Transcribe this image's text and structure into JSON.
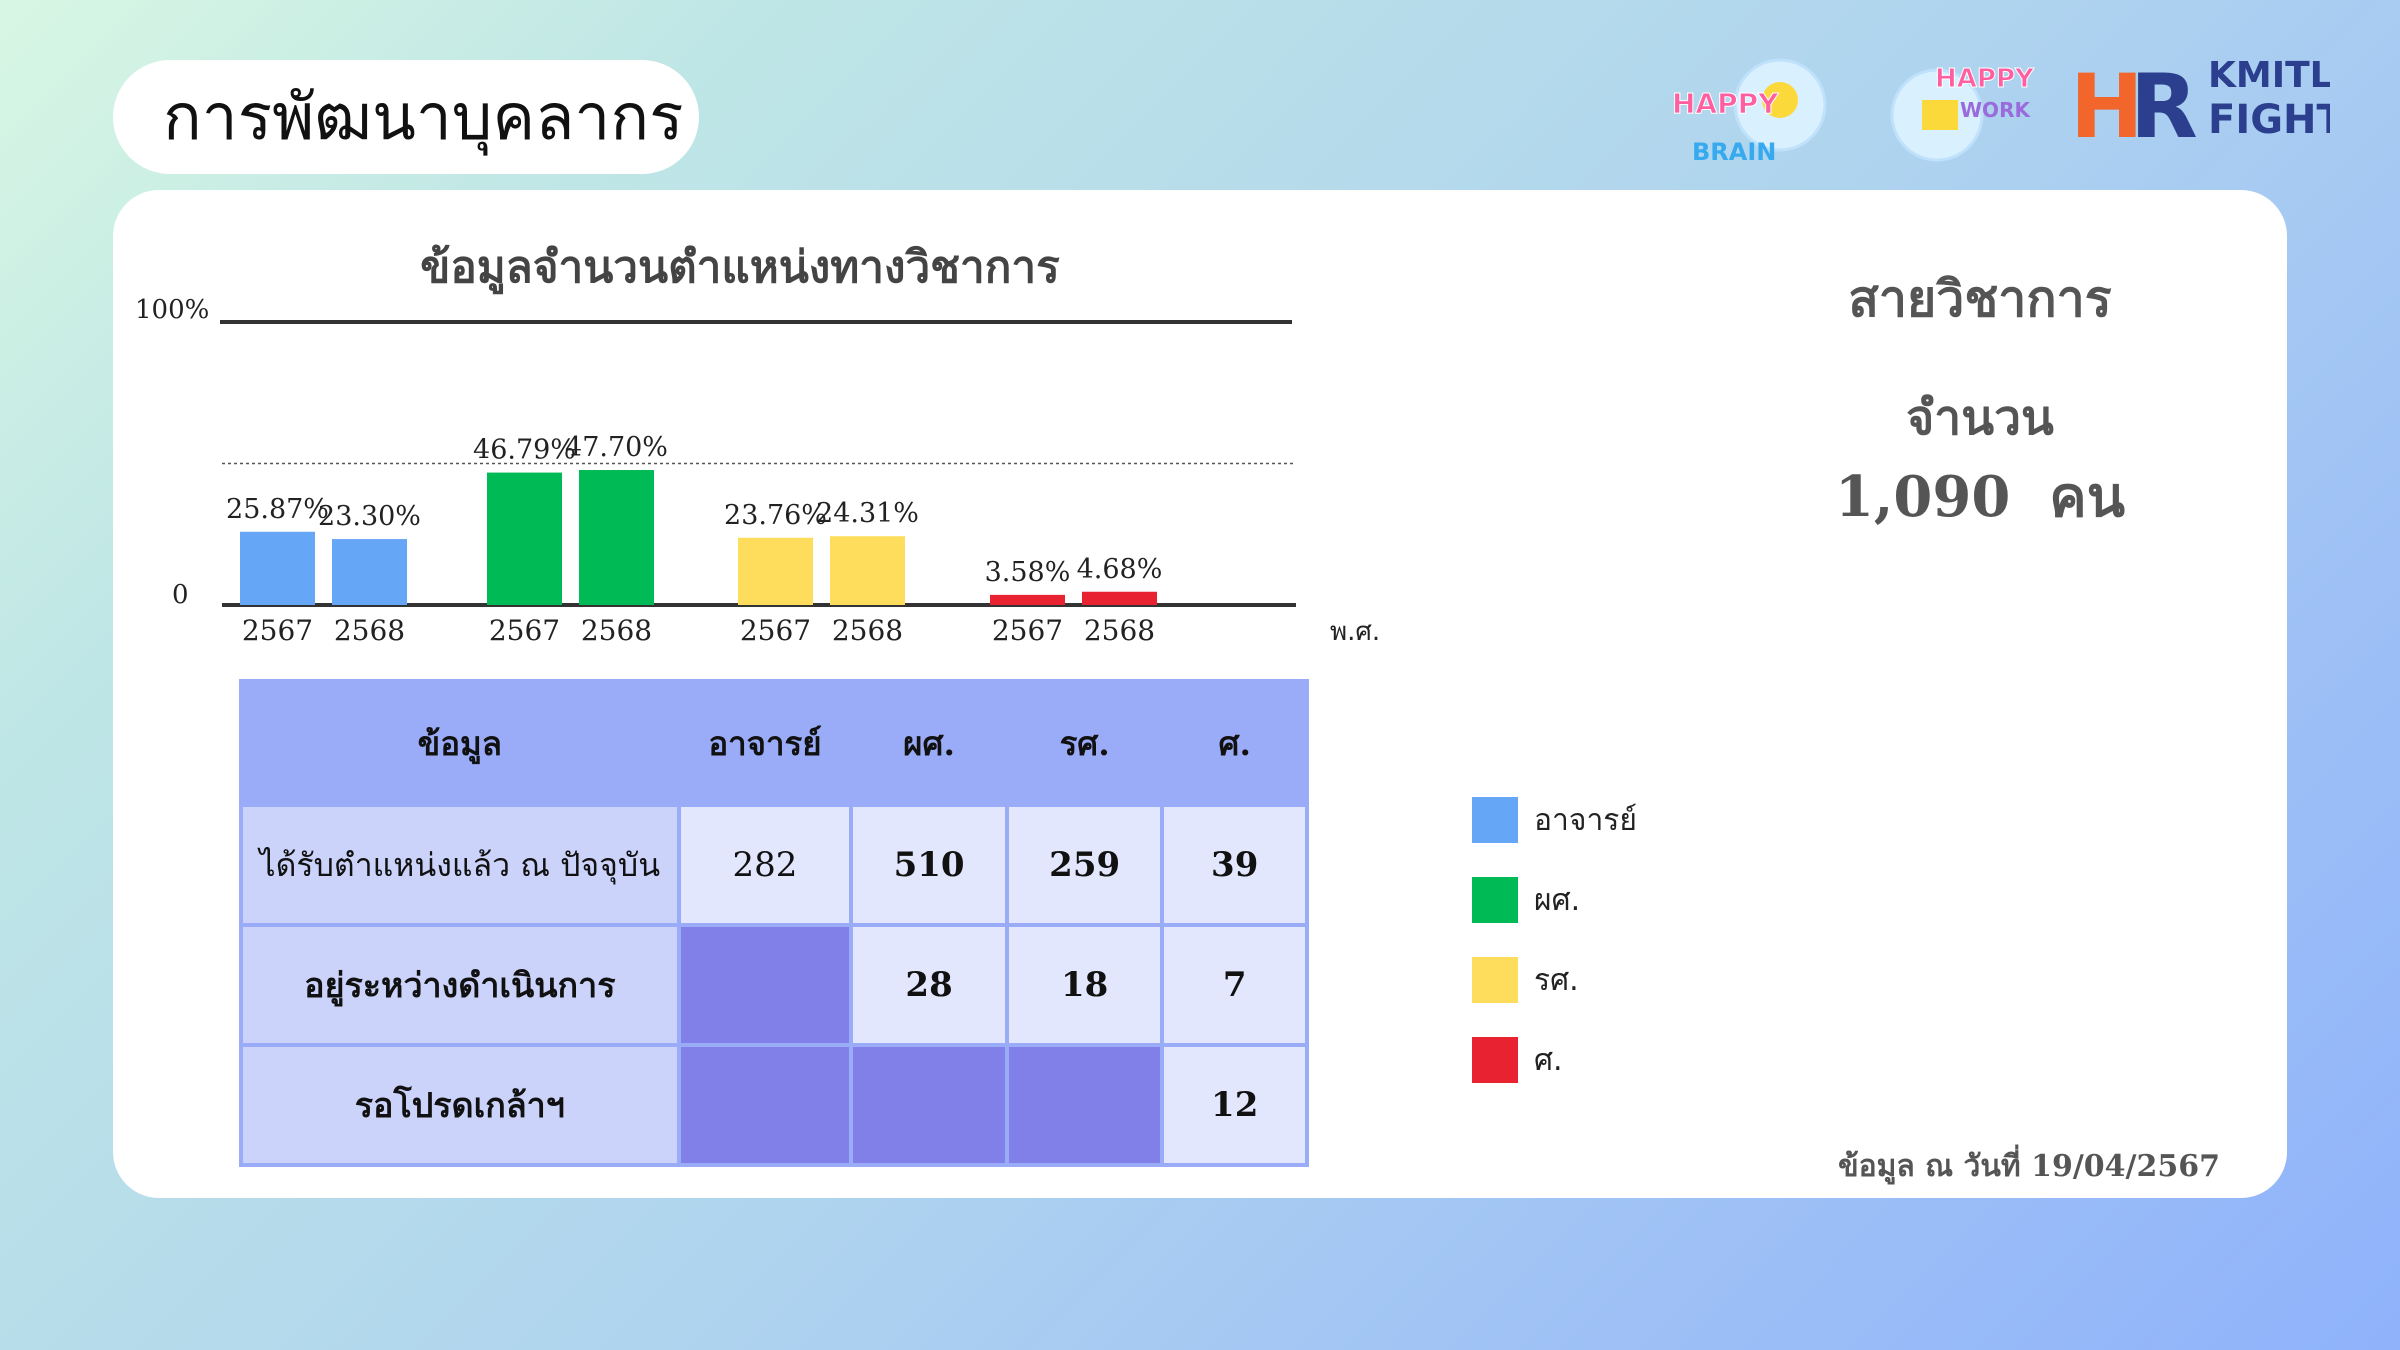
{
  "page": {
    "title": "การพัฒนาบุคลากร",
    "logos": [
      {
        "name": "happy-brain-logo",
        "text": "HAPPY BRAIN"
      },
      {
        "name": "happy-work-logo",
        "text": "HAPPY WORK"
      },
      {
        "name": "hr-kmitl-fight-logo",
        "text": "HR KMITL FIGHT"
      }
    ]
  },
  "colors": {
    "อาจารย์": "#66a6f6",
    "ผศ.": "#00bb55",
    "รศ.": "#fedd5c",
    "ศ.": "#e82230"
  },
  "chart_data": {
    "type": "bar",
    "title": "ข้อมูลจำนวนตำแหน่งทางวิชาการ",
    "ylim": [
      0,
      100
    ],
    "y_ticks": [
      "0",
      "100%"
    ],
    "xlabel": "พ.ศ.",
    "grid": false,
    "legend_position": "right",
    "groups": [
      {
        "series": "อาจารย์",
        "bars": [
          {
            "x": "2567",
            "value": 25.87,
            "label": "25.87%"
          },
          {
            "x": "2568",
            "value": 23.3,
            "label": "23.30%"
          }
        ]
      },
      {
        "series": "ผศ.",
        "bars": [
          {
            "x": "2567",
            "value": 46.79,
            "label": "46.79%"
          },
          {
            "x": "2568",
            "value": 47.7,
            "label": "47.70%"
          }
        ]
      },
      {
        "series": "รศ.",
        "bars": [
          {
            "x": "2567",
            "value": 23.76,
            "label": "23.76%"
          },
          {
            "x": "2568",
            "value": 24.31,
            "label": "24.31%"
          }
        ]
      },
      {
        "series": "ศ.",
        "bars": [
          {
            "x": "2567",
            "value": 3.58,
            "label": "3.58%"
          },
          {
            "x": "2568",
            "value": 4.68,
            "label": "4.68%"
          }
        ]
      }
    ]
  },
  "table": {
    "headers": [
      "ข้อมูล",
      "อาจารย์",
      "ผศ.",
      "รศ.",
      "ศ."
    ],
    "rows": [
      {
        "label": "ได้รับตำแหน่งแล้ว ณ ปัจจุบัน",
        "values": [
          "282",
          "510",
          "259",
          "39"
        ]
      },
      {
        "label": "อยู่ระหว่างดำเนินการ",
        "values": [
          "",
          "28",
          "18",
          "7"
        ]
      },
      {
        "label": "รอโปรดเกล้าฯ",
        "values": [
          "",
          "",
          "",
          "12"
        ]
      }
    ]
  },
  "summary": {
    "title": "สายวิชาการ",
    "count_label": "จำนวน",
    "count_value": "1,090  คน"
  },
  "legend": [
    {
      "label": "อาจารย์",
      "color": "#66a6f6"
    },
    {
      "label": "ผศ.",
      "color": "#00bb55"
    },
    {
      "label": "รศ.",
      "color": "#fedd5c"
    },
    {
      "label": "ศ.",
      "color": "#e82230"
    }
  ],
  "footnote": "ข้อมูล ณ วันที่ 19/04/2567"
}
